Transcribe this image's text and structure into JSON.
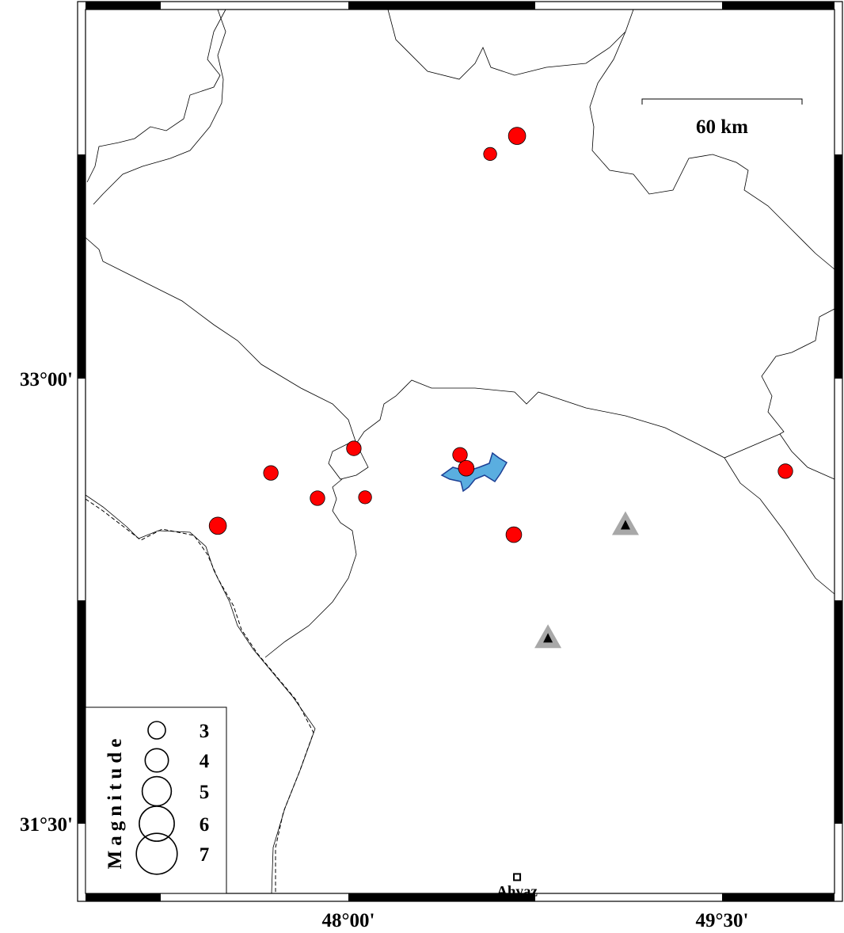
{
  "map": {
    "longitude_ticks": [
      {
        "value": 48.0,
        "label": "48°00'"
      },
      {
        "value": 49.5,
        "label": "49°30'"
      }
    ],
    "latitude_ticks": [
      {
        "value": 33.0,
        "label": "33°00'"
      },
      {
        "value": 31.5,
        "label": "31°30'"
      }
    ],
    "extent": {
      "lon": [
        46.945,
        49.951
      ],
      "lat": [
        31.265,
        34.244
      ]
    },
    "scale_bar": {
      "label": "60 km"
    },
    "colors": {
      "event": "#ff0000",
      "lake": "#5aaee0",
      "lake_outline": "#1c3f94",
      "station_outer": "#a8a8a8",
      "station_inner": "#000000"
    },
    "events": [
      {
        "lon": 48.677,
        "lat": 33.818,
        "mag": 3.3
      },
      {
        "lon": 48.569,
        "lat": 33.757,
        "mag": 2.5
      },
      {
        "lon": 48.022,
        "lat": 32.765,
        "mag": 2.8
      },
      {
        "lon": 47.689,
        "lat": 32.682,
        "mag": 2.8
      },
      {
        "lon": 47.876,
        "lat": 32.597,
        "mag": 2.8
      },
      {
        "lon": 48.067,
        "lat": 32.6,
        "mag": 2.5
      },
      {
        "lon": 47.476,
        "lat": 32.504,
        "mag": 3.3
      },
      {
        "lon": 48.448,
        "lat": 32.743,
        "mag": 2.8
      },
      {
        "lon": 48.473,
        "lat": 32.698,
        "mag": 3.0
      },
      {
        "lon": 48.664,
        "lat": 32.474,
        "mag": 3.0
      },
      {
        "lon": 49.754,
        "lat": 32.688,
        "mag": 2.8
      }
    ],
    "stations": [
      {
        "lon": 49.112,
        "lat": 32.505
      },
      {
        "lon": 48.801,
        "lat": 32.124
      }
    ],
    "cities": [
      {
        "name": "Ahvaz",
        "lon": 48.677,
        "lat": 31.32
      }
    ]
  },
  "legend": {
    "title": "Magnitude",
    "items": [
      {
        "label": "3",
        "mag": 3
      },
      {
        "label": "4",
        "mag": 4
      },
      {
        "label": "5",
        "mag": 5
      },
      {
        "label": "6",
        "mag": 6
      },
      {
        "label": "7",
        "mag": 7
      }
    ]
  }
}
